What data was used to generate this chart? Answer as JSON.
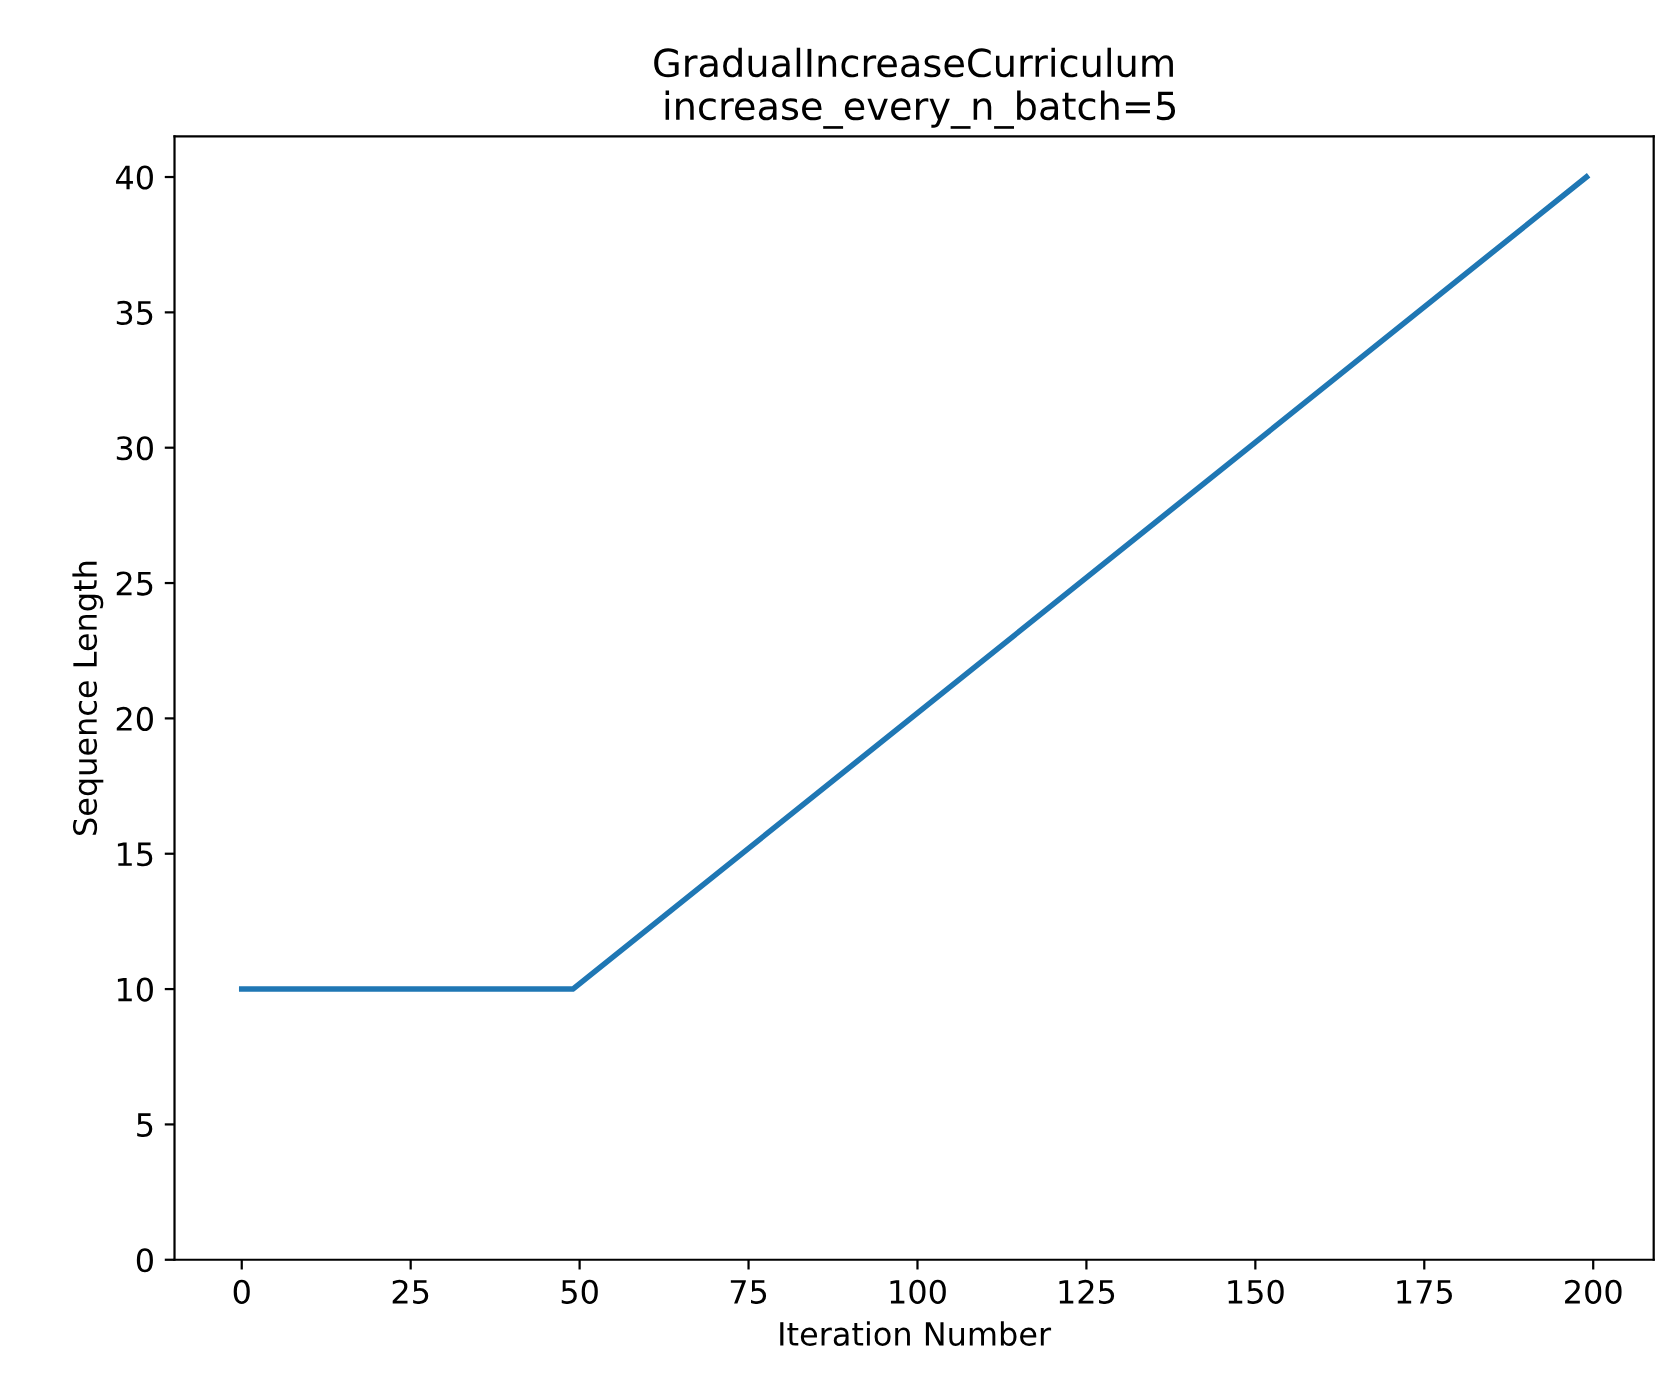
{
  "chart_data": {
    "type": "line",
    "title": "GradualIncreaseCurriculum",
    "subtitle": "increase_every_n_batch=5",
    "xlabel": "Iteration Number",
    "ylabel": "Sequence Length",
    "x": [
      0,
      49,
      199
    ],
    "series": [
      {
        "color": "#1f77b4",
        "values": [
          10,
          10,
          40
        ]
      }
    ],
    "xlim": [
      -9.95,
      208.95
    ],
    "ylim": [
      0,
      41.5
    ],
    "xticks": [
      0,
      25,
      50,
      75,
      100,
      125,
      150,
      175,
      200
    ],
    "yticks": [
      0,
      5,
      10,
      15,
      20,
      25,
      30,
      35,
      40
    ],
    "grid": false,
    "legend": false
  }
}
